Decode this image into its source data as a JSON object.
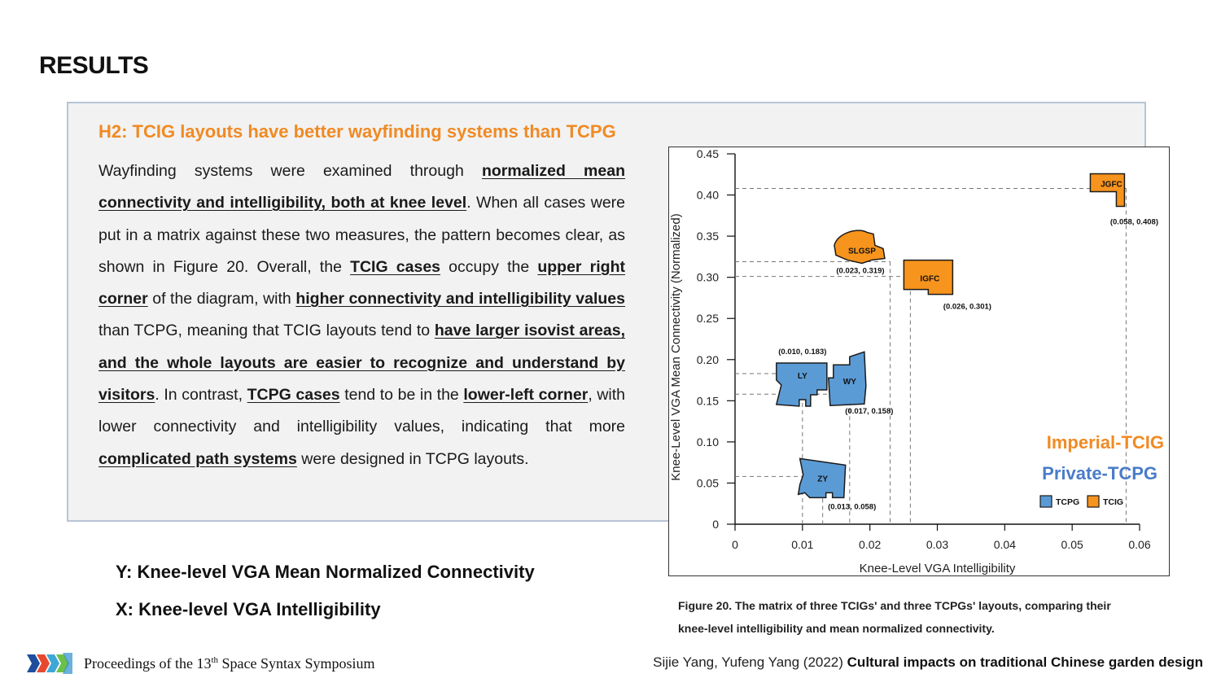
{
  "page": {
    "title": "RESULTS",
    "heading": "H2: TCIG layouts have better wayfinding systems than TCPG",
    "paragraph": [
      {
        "t": "Wayfinding systems were examined through ",
        "b": false
      },
      {
        "t": "normalized mean connectivity and intelligibility, both at knee level",
        "b": true
      },
      {
        "t": ". When all cases were put in a matrix against these two measures, the pattern becomes clear, as shown in Figure 20. Overall, the ",
        "b": false
      },
      {
        "t": "TCIG cases",
        "b": true
      },
      {
        "t": " occupy the ",
        "b": false
      },
      {
        "t": "upper right corner",
        "b": true
      },
      {
        "t": " of the diagram, with ",
        "b": false
      },
      {
        "t": "higher connectivity and intelligibility values",
        "b": true
      },
      {
        "t": " than TCPG, meaning that TCIG layouts tend to ",
        "b": false
      },
      {
        "t": "have larger isovist areas, and the whole layouts are easier to recognize and understand by visitors",
        "b": true
      },
      {
        "t": ". In contrast, ",
        "b": false
      },
      {
        "t": "TCPG cases",
        "b": true
      },
      {
        "t": " tend to be in the ",
        "b": false
      },
      {
        "t": "lower-left corner",
        "b": true
      },
      {
        "t": ", with lower connectivity and intelligibility values, indicating that more ",
        "b": false
      },
      {
        "t": "complicated path systems",
        "b": true
      },
      {
        "t": " were designed in TCPG layouts.",
        "b": false
      }
    ],
    "y_note": "Y: Knee-level VGA Mean Normalized Connectivity",
    "x_note": "X: Knee-level VGA Intelligibility",
    "caption_line1": "Figure 20. The matrix of three TCIGs'    and three TCPGs'    layouts, comparing their",
    "caption_line2": "knee-level intelligibility and mean normalized connectivity.",
    "footer_left_pre": "Proceedings of the 13",
    "footer_left_sup": "th",
    "footer_left_post": " Space Syntax Symposium",
    "footer_right_authors": "Sijie Yang, Yufeng Yang (2022) ",
    "footer_right_title": "Cultural impacts on traditional Chinese garden design"
  },
  "colors": {
    "accent_orange": "#f08a24",
    "accent_blue": "#4a7cc9",
    "tcpg_fill": "#5b9bd5",
    "tcig_fill": "#f7941d"
  },
  "chart_data": {
    "type": "scatter",
    "xlabel": "Knee-Level VGA Intelligibility",
    "ylabel": "Knee-Level VGA Mean Connectivity (Normalized)",
    "xlim": [
      0,
      0.06
    ],
    "ylim": [
      0,
      0.45
    ],
    "xticks": [
      "0",
      "0.01",
      "0.02",
      "0.03",
      "0.04",
      "0.05",
      "0.06"
    ],
    "xtick_values": [
      0,
      0.01,
      0.02,
      0.03,
      0.04,
      0.05,
      0.06
    ],
    "yticks": [
      "0",
      "0.05",
      "0.10",
      "0.15",
      "0.20",
      "0.25",
      "0.30",
      "0.35",
      "0.40",
      "0.45"
    ],
    "ytick_values": [
      0,
      0.05,
      0.1,
      0.15,
      0.2,
      0.25,
      0.3,
      0.35,
      0.4,
      0.45
    ],
    "grid": false,
    "guide_lines": "dashed",
    "legend": {
      "placement": "bottom-right",
      "entries": [
        {
          "name": "TCPG",
          "color": "#5b9bd5"
        },
        {
          "name": "TCIG",
          "color": "#f7941d"
        }
      ]
    },
    "group_labels": [
      {
        "text": "Imperial-TCIG",
        "color": "#f08a24"
      },
      {
        "text": "Private-TCPG",
        "color": "#4a7cc9"
      }
    ],
    "points": [
      {
        "name": "JGFC",
        "group": "TCIG",
        "x": 0.058,
        "y": 0.408,
        "label": "(0.058, 0.408)"
      },
      {
        "name": "SLGSP",
        "group": "TCIG",
        "x": 0.023,
        "y": 0.319,
        "label": "(0.023, 0.319)"
      },
      {
        "name": "IGFC",
        "group": "TCIG",
        "x": 0.026,
        "y": 0.301,
        "label": "(0.026, 0.301)"
      },
      {
        "name": "LY",
        "group": "TCPG",
        "x": 0.01,
        "y": 0.183,
        "label": "(0.010, 0.183)"
      },
      {
        "name": "WY",
        "group": "TCPG",
        "x": 0.017,
        "y": 0.158,
        "label": "(0.017, 0.158)"
      },
      {
        "name": "ZY",
        "group": "TCPG",
        "x": 0.013,
        "y": 0.058,
        "label": "(0.013, 0.058)"
      }
    ]
  }
}
